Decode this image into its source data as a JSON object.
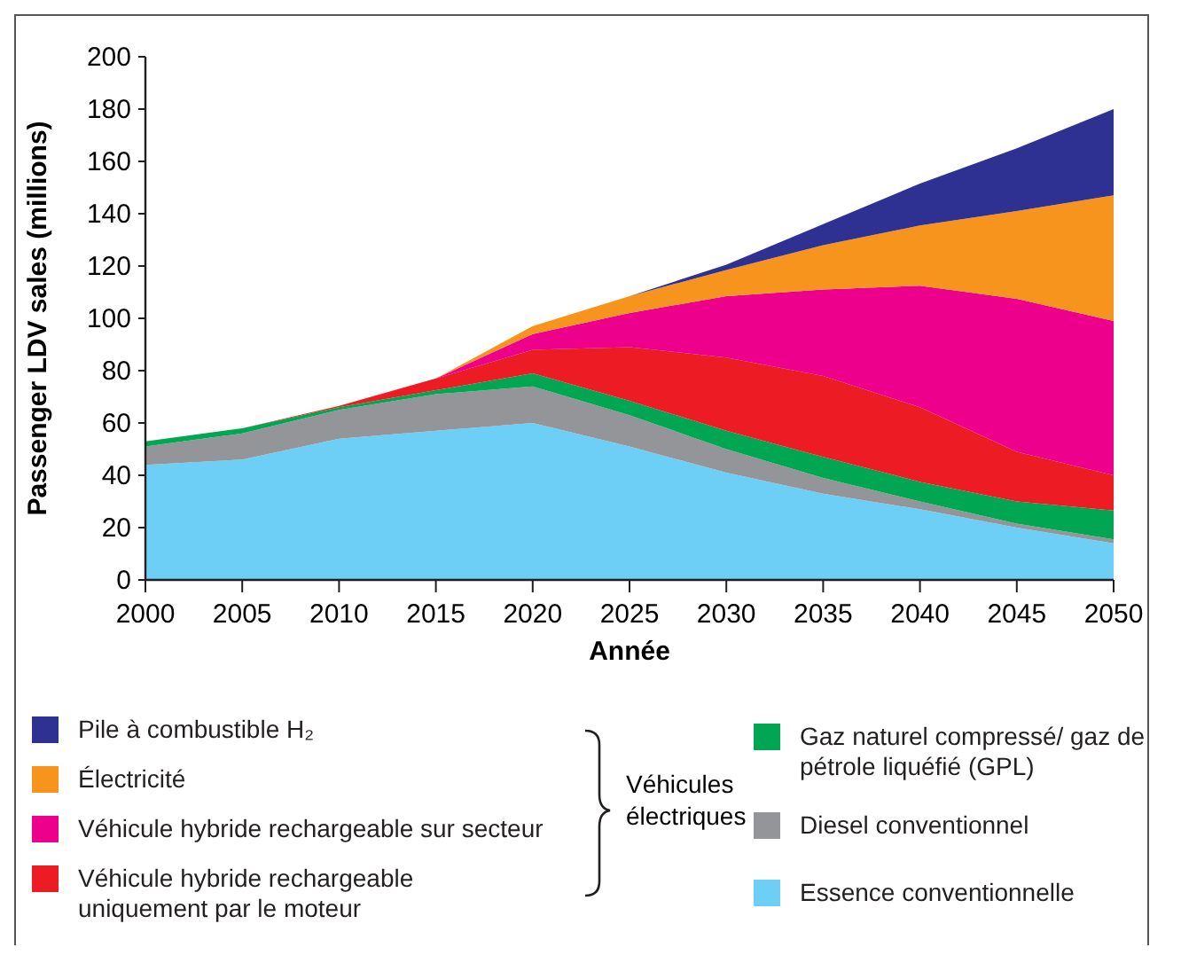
{
  "chart_data": {
    "type": "area",
    "stacked": true,
    "xlabel": "Année",
    "ylabel": "Passenger LDV sales (millions)",
    "x": [
      2000,
      2005,
      2010,
      2015,
      2020,
      2025,
      2030,
      2035,
      2040,
      2045,
      2050
    ],
    "xlim": [
      2000,
      2050
    ],
    "xticks": [
      2000,
      2005,
      2010,
      2015,
      2020,
      2025,
      2030,
      2035,
      2040,
      2045,
      2050
    ],
    "ylim": [
      0,
      200
    ],
    "yticks": [
      0,
      20,
      40,
      60,
      80,
      100,
      120,
      140,
      160,
      180,
      200
    ],
    "grid": false,
    "legend": "bottom",
    "series": [
      {
        "name": "Essence conventionnelle",
        "color": "#6dcff6",
        "values": [
          44,
          46,
          54,
          57,
          60,
          51,
          41,
          33,
          27,
          20,
          14
        ]
      },
      {
        "name": "Diesel conventionnel",
        "color": "#939598",
        "values": [
          7,
          10,
          11,
          14,
          14,
          12,
          9,
          6,
          3,
          1.5,
          1.5
        ]
      },
      {
        "name": "Gaz naturel compressé/ gaz de pétrole liquéfié (GPL)",
        "color": "#00a651",
        "values": [
          2,
          2,
          1,
          1.5,
          5,
          5.5,
          7,
          8,
          7.5,
          8.5,
          11
        ]
      },
      {
        "name": "Véhicule hybride rechargeable uniquement par le moteur",
        "color": "#ed1c24",
        "values": [
          0,
          0,
          0.5,
          4.5,
          9,
          20.5,
          28,
          31,
          28.5,
          19,
          13.5
        ]
      },
      {
        "name": "Véhicule hybride rechargeable sur secteur",
        "color": "#ec008c",
        "values": [
          0,
          0,
          0,
          0,
          6,
          13,
          23.5,
          33,
          46.5,
          58.5,
          59
        ]
      },
      {
        "name": "Électricité",
        "color": "#f7941d",
        "values": [
          0,
          0,
          0,
          0,
          3,
          6.5,
          10,
          17,
          23,
          33.5,
          48
        ]
      },
      {
        "name": "Pile à combustible H₂",
        "color": "#2e3192",
        "values": [
          0,
          0,
          0,
          0,
          0,
          0,
          2,
          8,
          16,
          24,
          33
        ]
      }
    ],
    "annotations": [
      "Véhicules électriques"
    ]
  }
}
